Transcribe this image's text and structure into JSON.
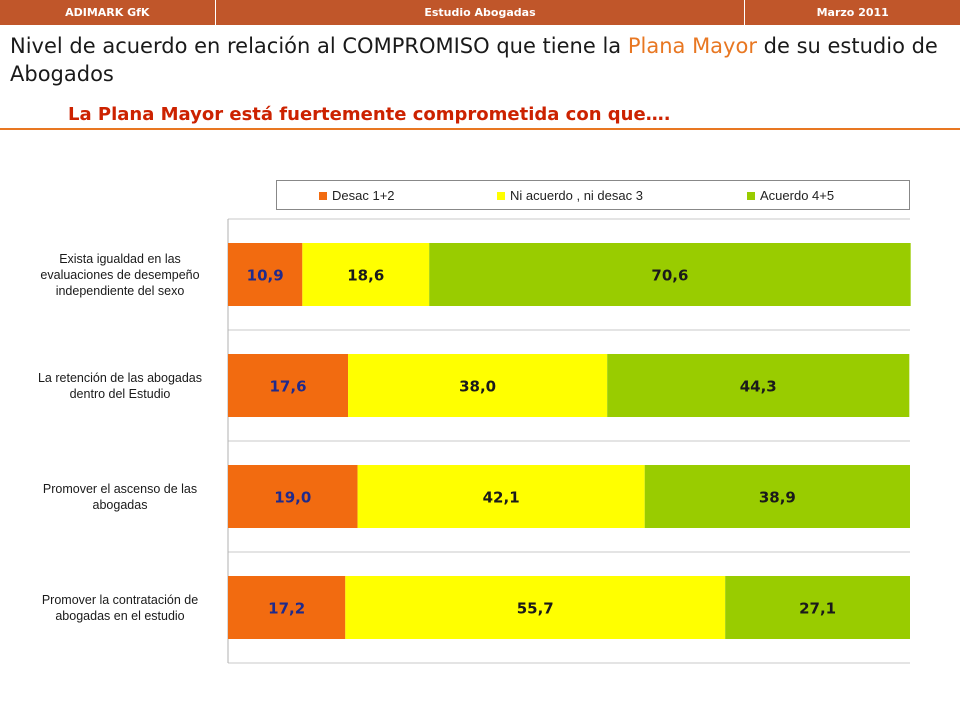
{
  "header": {
    "left": "ADIMARK GfK",
    "center": "Estudio Abogadas",
    "right": "Marzo 2011"
  },
  "title": {
    "part1": "Nivel de acuerdo en relación al COMPROMISO que tiene la ",
    "highlight": "Plana Mayor",
    "part2": " de su estudio de Abogados"
  },
  "subtitle": "La Plana Mayor está fuertemente comprometida con que….",
  "colors": {
    "header_bg": "#c0562a",
    "highlight": "#e87722",
    "subtitle": "#cc2200",
    "desac": "#f26b10",
    "ni": "#ffff00",
    "acuerdo": "#99cc00",
    "desac_label": "#1f2a8c"
  },
  "chart_data": {
    "type": "bar",
    "orientation": "horizontal",
    "stacked": true,
    "xlim": [
      0,
      100
    ],
    "legend_position": "top",
    "categories": [
      "Exista igualdad en las evaluaciones de desempeño independiente del sexo",
      "La retención de las abogadas dentro del Estudio",
      "Promover el ascenso de las abogadas",
      "Promover la contratación de abogadas en el estudio"
    ],
    "category_lines": [
      [
        "Exista igualdad en las",
        "evaluaciones de desempeño",
        "independiente del sexo"
      ],
      [
        "La retención de las abogadas",
        "dentro del Estudio"
      ],
      [
        "Promover el ascenso de las",
        "abogadas"
      ],
      [
        "Promover la contratación de",
        "abogadas en el estudio"
      ]
    ],
    "series": [
      {
        "name": "Desac 1+2",
        "values": [
          10.9,
          17.6,
          19.0,
          17.2
        ],
        "labels": [
          "10,9",
          "17,6",
          "19,0",
          "17,2"
        ]
      },
      {
        "name": "Ni acuerdo , ni desac 3",
        "values": [
          18.6,
          38.0,
          42.1,
          55.7
        ],
        "labels": [
          "18,6",
          "38,0",
          "42,1",
          "55,7"
        ]
      },
      {
        "name": "Acuerdo 4+5",
        "values": [
          70.6,
          44.3,
          38.9,
          27.1
        ],
        "labels": [
          "70,6",
          "44,3",
          "38,9",
          "27,1"
        ]
      }
    ]
  }
}
